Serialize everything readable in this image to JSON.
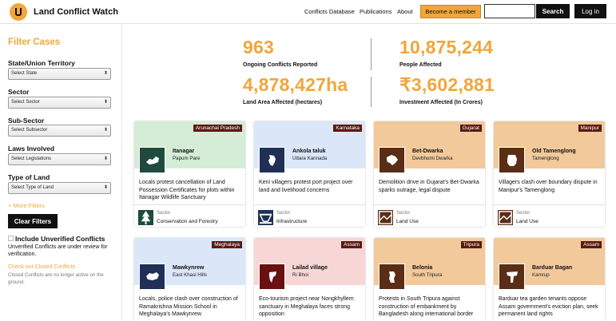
{
  "header": {
    "site_title": "Land Conflict Watch",
    "nav": [
      "Conflicts Database",
      "Publications",
      "About"
    ],
    "member_button": "Become a member",
    "search_placeholder": "",
    "search_button": "Search",
    "login_button": "Log in"
  },
  "sidebar": {
    "title": "Filter Cases",
    "filters": [
      {
        "label": "State/Union Territory",
        "placeholder": "Select State"
      },
      {
        "label": "Sector",
        "placeholder": "Select Sector"
      },
      {
        "label": "Sub-Sector",
        "placeholder": "Select Subsector"
      },
      {
        "label": "Laws Involved",
        "placeholder": "Select Legislations"
      },
      {
        "label": "Type of Land",
        "placeholder": "Select Type of Land"
      }
    ],
    "more_filters": "+ More Filters",
    "clear_button": "Clear Filters",
    "unverified_title": "Include Unverified Conflicts",
    "unverified_note": "Unverified Conflicts are under review for verification.",
    "closed_link": "Check out Closed Conflicts",
    "closed_note": "Closed Conflicts are no longer active on the ground."
  },
  "stats": [
    {
      "value": "963",
      "label": "Ongoing Conflicts Reported"
    },
    {
      "value": "10,875,244",
      "label": "People Affected"
    },
    {
      "value": "4,878,427ha",
      "label": "Land Area Affected (hectares)"
    },
    {
      "value": "₹3,602,881",
      "label": "Investment Affected (In Crores)"
    }
  ],
  "cards": [
    {
      "state": "Arunachal Pradesh",
      "place": "Itanagar",
      "district": "Papum Pare",
      "headline": "Locals protest cancellation of Land Possession Certificates for plots within Itanagar Wildlife Sanctuary",
      "sector_label": "Sector",
      "sector": "Conservation and Forestry",
      "bg": "#d5ecd7",
      "thumb": "#1f4a3e",
      "icon": "forest-icon"
    },
    {
      "state": "Karnataka",
      "place": "Ankola taluk",
      "district": "Uttara Kannada",
      "headline": "Keni villagers protest port project over land and livelihood concerns",
      "sector_label": "Sector",
      "sector": "Infrastructure",
      "bg": "#dbe6f8",
      "thumb": "#1f2f56",
      "icon": "infrastructure-icon"
    },
    {
      "state": "Gujarat",
      "place": "Bet-Dwarka",
      "district": "Devbhumi Dwarka",
      "headline": "Demolition drive in Gujarat's Bet-Dwarka sparks outrage, legal dispute",
      "sector_label": "Sector",
      "sector": "Land Use",
      "bg": "#f2c99a",
      "thumb": "#5a2d16",
      "icon": "land-use-icon"
    },
    {
      "state": "Manipur",
      "place": "Old Tamenglong",
      "district": "Tamenglong",
      "headline": "Villagers clash over boundary dispute in Manipur's Tamenglong",
      "sector_label": "Sector",
      "sector": "Land Use",
      "bg": "#f2c99a",
      "thumb": "#5a2d16",
      "icon": "land-use-icon"
    },
    {
      "state": "Meghalaya",
      "place": "Mawkynrew",
      "district": "East Khasi Hills",
      "headline": "Locals, police clash over construction of Ramakrishna Mission School in Meghalaya's Mawkynrew",
      "bg": "#dbe6f8",
      "thumb": "#1f2f56",
      "icon": "infrastructure-icon"
    },
    {
      "state": "Assam",
      "place": "Lailad village",
      "district": "Ri Bhoi",
      "headline": "Eco-tourism project near Nongkhyllem sanctuary in Meghalaya faces strong opposition",
      "bg": "#f7d6d6",
      "thumb": "#6a1010",
      "icon": "tourism-icon"
    },
    {
      "state": "Tripura",
      "place": "Belonia",
      "district": "South Tripura",
      "headline": "Protests in South Tripura against construction of embankment by Bangladesh along international border",
      "bg": "#f2c99a",
      "thumb": "#5a2d16",
      "icon": "land-use-icon"
    },
    {
      "state": "Assam",
      "place": "Barduar Bagan",
      "district": "Kamrup",
      "headline": "Barduar tea garden tenants oppose Assam government's eviction plan, seek permanent land rights",
      "bg": "#f2c99a",
      "thumb": "#5a2d16",
      "icon": "land-use-icon"
    }
  ]
}
